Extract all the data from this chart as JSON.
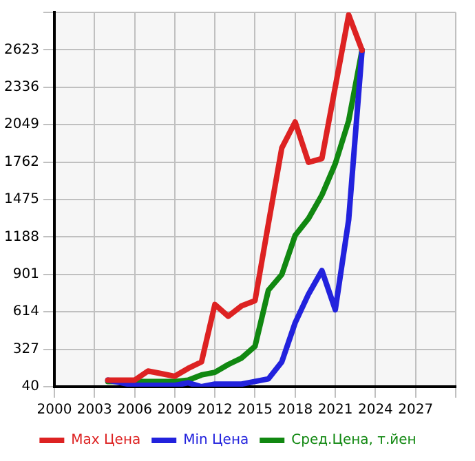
{
  "chart_data": {
    "type": "line",
    "x": [
      2004,
      2005,
      2006,
      2007,
      2008,
      2009,
      2010,
      2011,
      2012,
      2013,
      2014,
      2015,
      2016,
      2017,
      2018,
      2019,
      2020,
      2021,
      2022,
      2023
    ],
    "series": [
      {
        "name": "Max Цена",
        "color": "#dd2222",
        "values": [
          90,
          90,
          90,
          160,
          140,
          120,
          180,
          230,
          670,
          580,
          660,
          700,
          1290,
          1870,
          2070,
          1760,
          1790,
          2340,
          2890,
          2620
        ]
      },
      {
        "name": "Min Цена",
        "color": "#2222dd",
        "values": [
          90,
          70,
          50,
          50,
          50,
          50,
          70,
          40,
          60,
          60,
          60,
          80,
          100,
          230,
          530,
          750,
          930,
          630,
          1320,
          2620
        ]
      },
      {
        "name": "Сред.Цена, т.йен",
        "color": "#118811",
        "values": [
          80,
          80,
          80,
          80,
          80,
          80,
          90,
          130,
          150,
          210,
          260,
          350,
          780,
          900,
          1200,
          1330,
          1510,
          1750,
          2080,
          2620
        ]
      }
    ],
    "xlim": [
      2000,
      2030
    ],
    "xticks": [
      2000,
      2003,
      2006,
      2009,
      2012,
      2015,
      2018,
      2021,
      2024,
      2027,
      {
        "value": 2030,
        "label": null
      }
    ],
    "ylim": [
      40,
      2910
    ],
    "yticks": [
      40,
      327,
      614,
      901,
      1188,
      1475,
      1762,
      2049,
      2336,
      2623,
      {
        "value": 2910,
        "label": null
      }
    ],
    "grid": true,
    "legend": "bottom",
    "marker": "none",
    "line_style": "solid"
  }
}
